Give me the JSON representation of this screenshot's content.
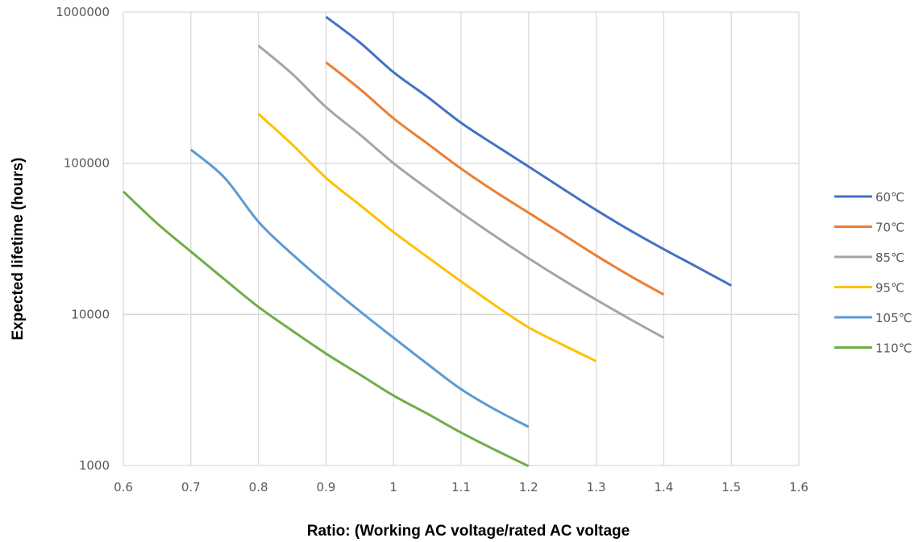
{
  "chart_data": {
    "type": "line",
    "title": "",
    "xlabel": "Ratio: (Working AC voltage/rated AC voltage",
    "ylabel": "Expected lifetime (hours)",
    "x_ticks": [
      "0.6",
      "0.7",
      "0.8",
      "0.9",
      "1",
      "1.1",
      "1.2",
      "1.3",
      "1.4",
      "1.5",
      "1.6"
    ],
    "y_ticks": [
      "1000",
      "10000",
      "100000",
      "1000000"
    ],
    "xlim": [
      0.6,
      1.6
    ],
    "ylim": [
      1000,
      1000000
    ],
    "y_scale": "log",
    "grid": true,
    "legend_position": "right",
    "series": [
      {
        "name": "60℃",
        "color": "#4472C4",
        "points": [
          [
            0.9,
            930000
          ],
          [
            0.95,
            630000
          ],
          [
            1.0,
            400000
          ],
          [
            1.05,
            275000
          ],
          [
            1.1,
            185000
          ],
          [
            1.15,
            132000
          ],
          [
            1.2,
            95000
          ],
          [
            1.25,
            68000
          ],
          [
            1.3,
            49000
          ],
          [
            1.35,
            36000
          ],
          [
            1.4,
            27000
          ],
          [
            1.45,
            20500
          ],
          [
            1.5,
            15500
          ]
        ]
      },
      {
        "name": "70℃",
        "color": "#ED7D31",
        "points": [
          [
            0.9,
            465000
          ],
          [
            0.95,
            310000
          ],
          [
            1.0,
            198000
          ],
          [
            1.05,
            135000
          ],
          [
            1.1,
            92000
          ],
          [
            1.15,
            65000
          ],
          [
            1.2,
            47000
          ],
          [
            1.25,
            34000
          ],
          [
            1.3,
            24500
          ],
          [
            1.35,
            18000
          ],
          [
            1.4,
            13500
          ]
        ]
      },
      {
        "name": "85℃",
        "color": "#A5A5A5",
        "points": [
          [
            0.8,
            600000
          ],
          [
            0.85,
            390000
          ],
          [
            0.9,
            235000
          ],
          [
            0.95,
            155000
          ],
          [
            1.0,
            100000
          ],
          [
            1.05,
            68000
          ],
          [
            1.1,
            47000
          ],
          [
            1.15,
            33000
          ],
          [
            1.2,
            23500
          ],
          [
            1.25,
            17000
          ],
          [
            1.3,
            12500
          ],
          [
            1.35,
            9300
          ],
          [
            1.4,
            7000
          ]
        ]
      },
      {
        "name": "95℃",
        "color": "#FFC000",
        "points": [
          [
            0.8,
            212000
          ],
          [
            0.85,
            133000
          ],
          [
            0.9,
            80000
          ],
          [
            0.95,
            53000
          ],
          [
            1.0,
            35000
          ],
          [
            1.05,
            24000
          ],
          [
            1.1,
            16500
          ],
          [
            1.15,
            11500
          ],
          [
            1.2,
            8200
          ],
          [
            1.25,
            6300
          ],
          [
            1.3,
            4900
          ]
        ]
      },
      {
        "name": "105℃",
        "color": "#5B9BD5",
        "points": [
          [
            0.7,
            123000
          ],
          [
            0.75,
            80000
          ],
          [
            0.8,
            41000
          ],
          [
            0.85,
            25000
          ],
          [
            0.9,
            16000
          ],
          [
            0.95,
            10500
          ],
          [
            1.0,
            7000
          ],
          [
            1.05,
            4700
          ],
          [
            1.1,
            3200
          ],
          [
            1.15,
            2350
          ],
          [
            1.2,
            1800
          ]
        ]
      },
      {
        "name": "110℃",
        "color": "#70AD47",
        "points": [
          [
            0.6,
            65000
          ],
          [
            0.65,
            40000
          ],
          [
            0.7,
            26000
          ],
          [
            0.75,
            17000
          ],
          [
            0.8,
            11200
          ],
          [
            0.85,
            7800
          ],
          [
            0.9,
            5500
          ],
          [
            0.95,
            4000
          ],
          [
            1.0,
            2900
          ],
          [
            1.05,
            2200
          ],
          [
            1.1,
            1650
          ],
          [
            1.15,
            1270
          ],
          [
            1.2,
            990
          ]
        ]
      }
    ]
  }
}
